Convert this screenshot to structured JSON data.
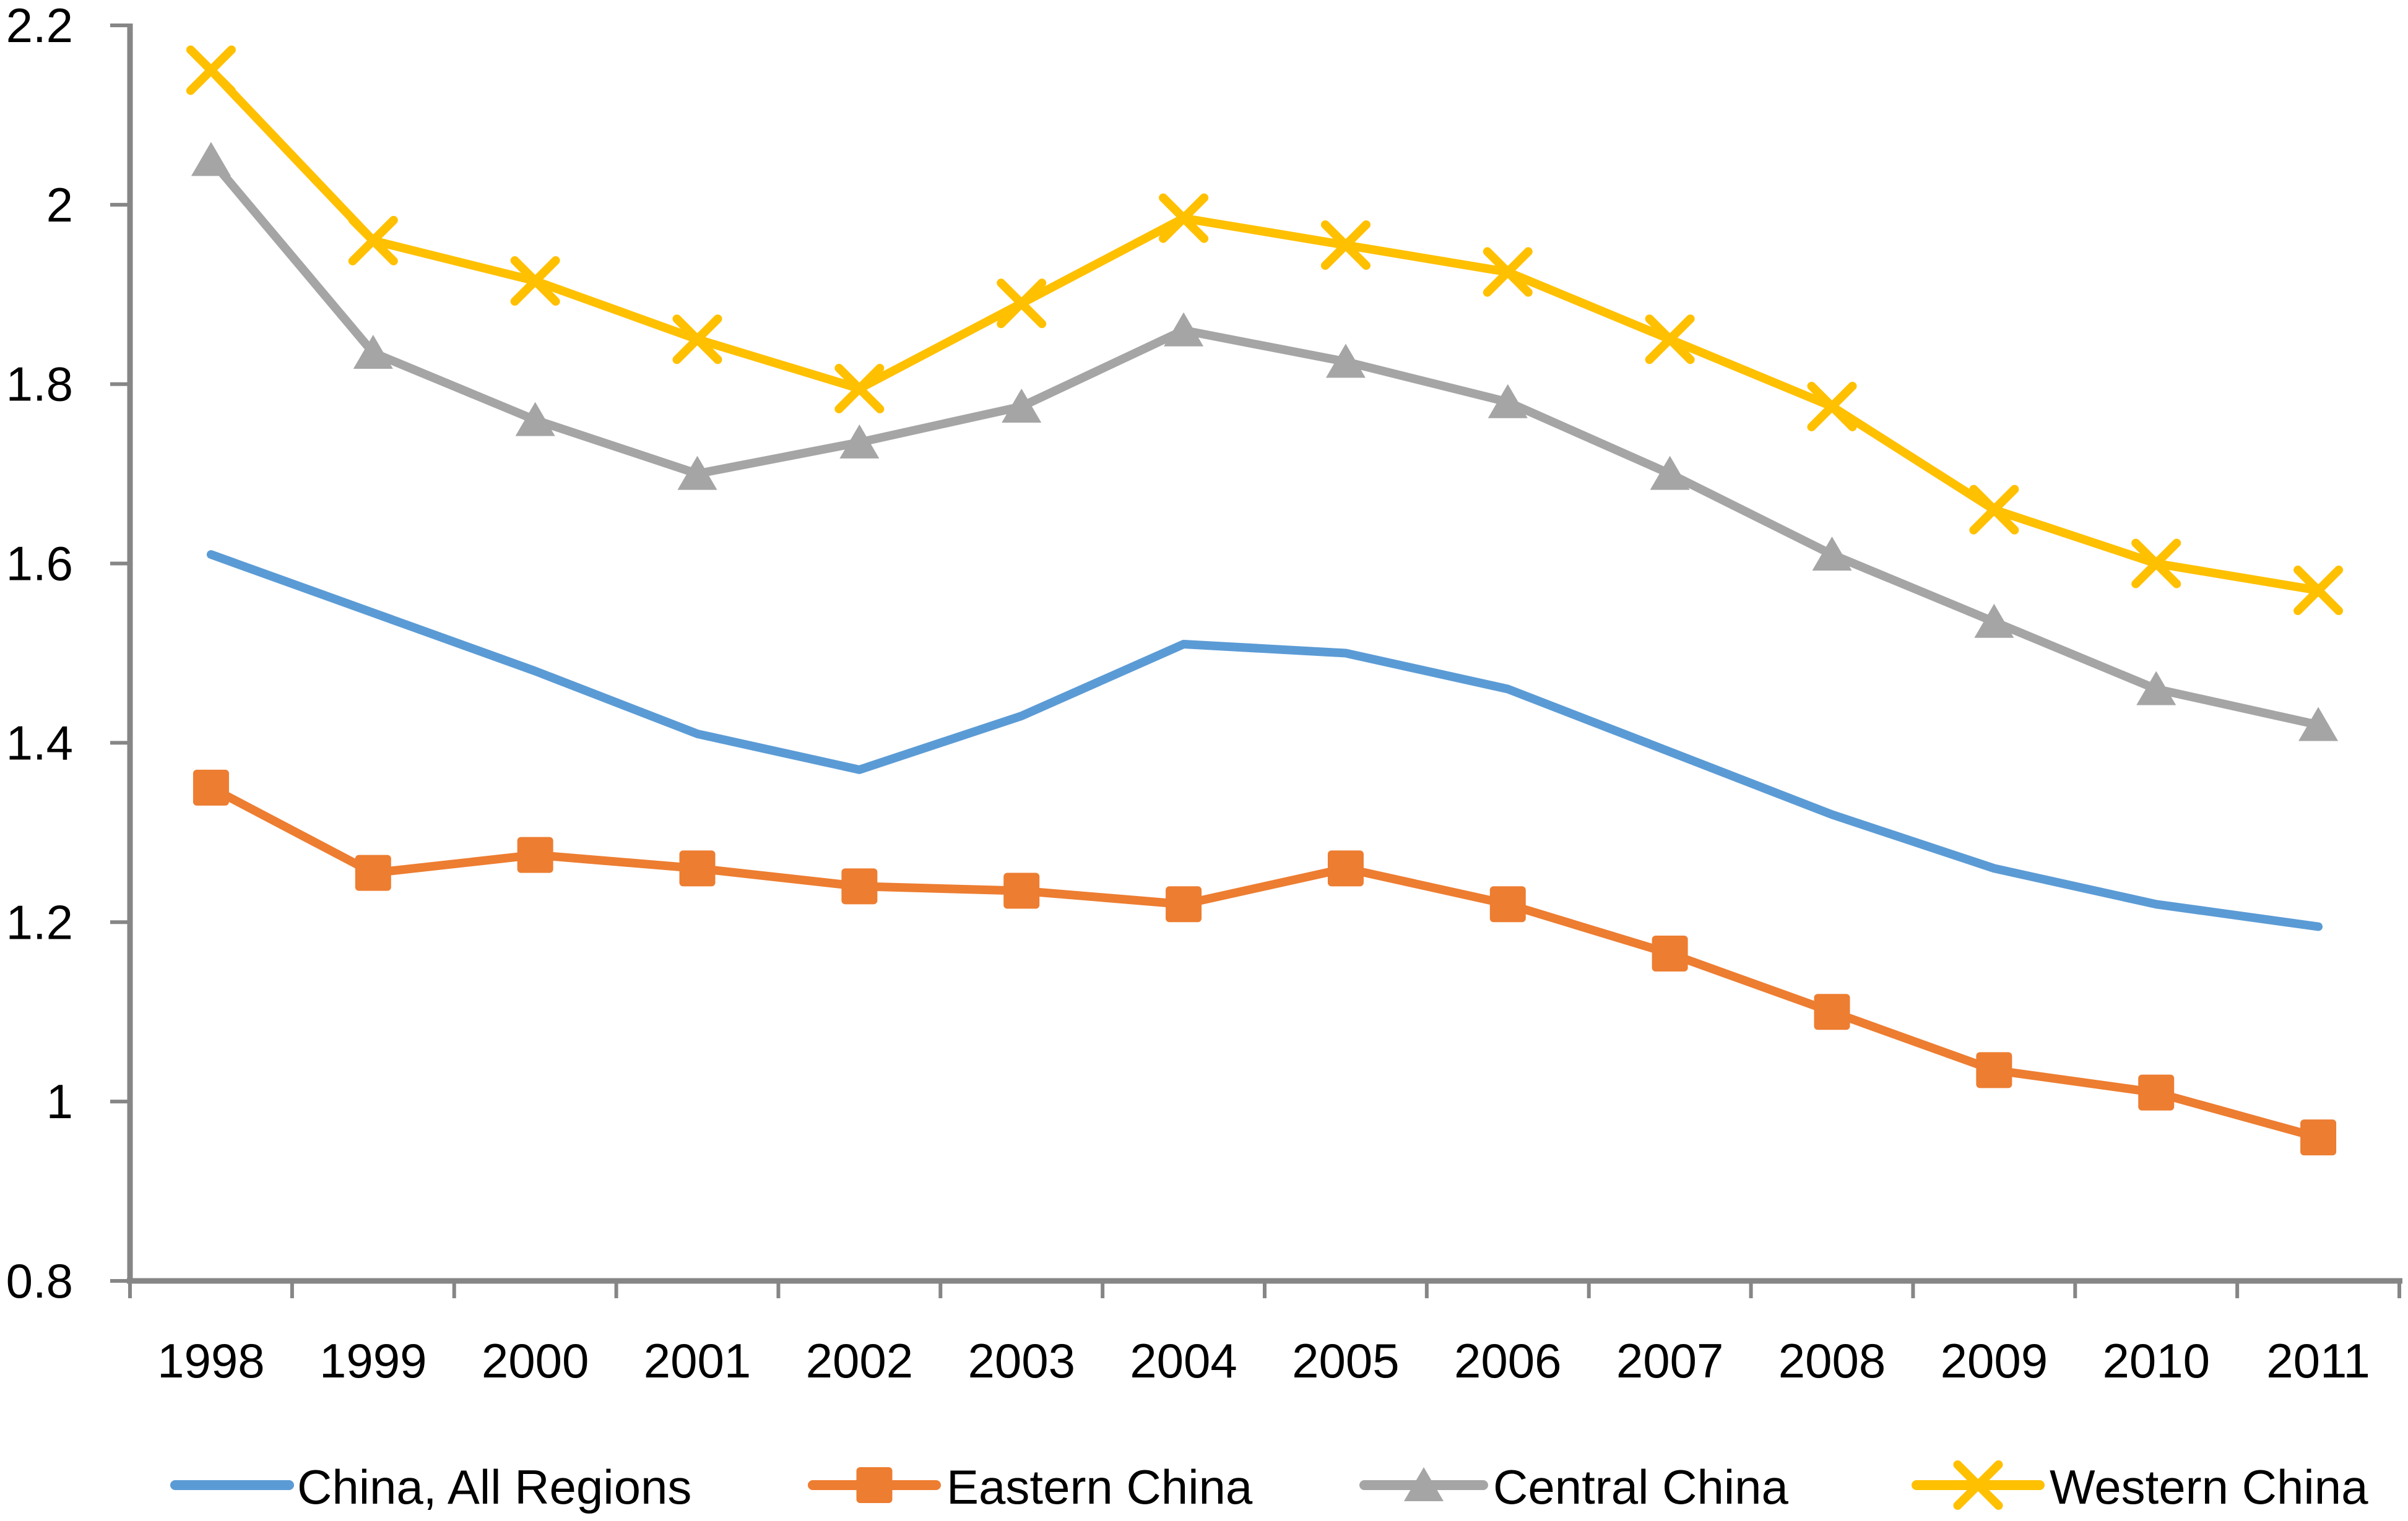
{
  "page": {
    "background": "#ffffff"
  },
  "chart_data": {
    "type": "line",
    "title": "",
    "xlabel": "",
    "ylabel": "",
    "grid": false,
    "legend_position": "bottom",
    "axis_color": "#868686",
    "text_color": "#000000",
    "ylim": [
      0.8,
      2.2
    ],
    "ytick_step": 0.2,
    "ytick_labels": [
      "0.8",
      "1",
      "1.2",
      "1.4",
      "1.6",
      "1.8",
      "2",
      "2.2"
    ],
    "categories": [
      "1998",
      "1999",
      "2000",
      "2001",
      "2002",
      "2003",
      "2004",
      "2005",
      "2006",
      "2007",
      "2008",
      "2009",
      "2010",
      "2011"
    ],
    "series": [
      {
        "name": "China, All Regions",
        "color": "#5B9BD5",
        "marker": "none",
        "values": [
          1.61,
          1.545,
          1.48,
          1.41,
          1.37,
          1.43,
          1.51,
          1.5,
          1.46,
          1.39,
          1.32,
          1.26,
          1.22,
          1.195
        ]
      },
      {
        "name": "Eastern China",
        "color": "#ED7D31",
        "marker": "square",
        "values": [
          1.35,
          1.255,
          1.275,
          1.26,
          1.24,
          1.235,
          1.22,
          1.26,
          1.22,
          1.165,
          1.1,
          1.035,
          1.01,
          0.96
        ]
      },
      {
        "name": "Central China",
        "color": "#A5A5A5",
        "marker": "triangle",
        "values": [
          2.05,
          1.835,
          1.76,
          1.7,
          1.735,
          1.775,
          1.86,
          1.825,
          1.78,
          1.7,
          1.61,
          1.535,
          1.46,
          1.42
        ]
      },
      {
        "name": "Western China",
        "color": "#FFC000",
        "marker": "x",
        "values": [
          2.15,
          1.96,
          1.915,
          1.85,
          1.795,
          1.89,
          1.985,
          1.955,
          1.925,
          1.85,
          1.775,
          1.66,
          1.6,
          1.57
        ]
      }
    ]
  }
}
